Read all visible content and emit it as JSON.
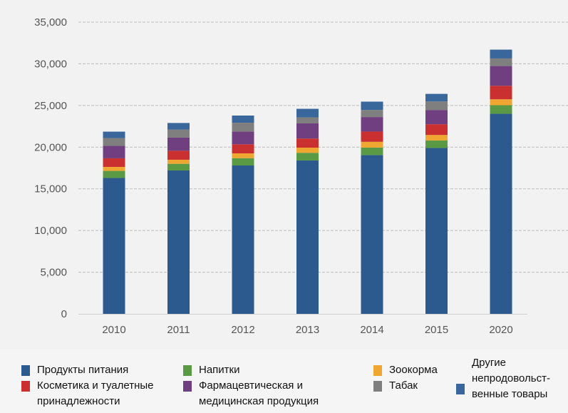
{
  "chart_data": {
    "type": "bar",
    "stacked": true,
    "title": "",
    "xlabel": "",
    "ylabel": "",
    "ylim": [
      0,
      35000
    ],
    "yticks": [
      0,
      5000,
      10000,
      15000,
      20000,
      25000,
      30000,
      35000
    ],
    "ytick_labels": [
      "0",
      "5,000",
      "10,000",
      "15,000",
      "20,000",
      "25,000",
      "30,000",
      "35,000"
    ],
    "grid": true,
    "legend_position": "bottom",
    "categories": [
      "2010",
      "2011",
      "2012",
      "2013",
      "2014",
      "2015",
      "2020"
    ],
    "series": [
      {
        "name": "Продукты питания",
        "color": "#2d5a8e",
        "values": [
          16300,
          17200,
          17800,
          18400,
          19050,
          19900,
          24000
        ]
      },
      {
        "name": "Напитки",
        "color": "#5b9a45",
        "values": [
          850,
          800,
          880,
          920,
          900,
          900,
          1030
        ]
      },
      {
        "name": "Зоокорма",
        "color": "#f0a732",
        "values": [
          480,
          490,
          570,
          620,
          690,
          660,
          710
        ]
      },
      {
        "name": "Косметика и туалетные принадлежности",
        "color": "#c9302f",
        "values": [
          1030,
          1080,
          1090,
          1090,
          1230,
          1290,
          1620
        ]
      },
      {
        "name": "Фармацевтическая и медицинская продукция",
        "color": "#6f3f7f",
        "values": [
          1490,
          1570,
          1540,
          1820,
          1740,
          1710,
          2370
        ]
      },
      {
        "name": "Табак",
        "color": "#7f7f7f",
        "values": [
          940,
          970,
          1050,
          720,
          850,
          1020,
          910
        ]
      },
      {
        "name": "Другие непродовольственные товары",
        "color": "#3a679b",
        "values": [
          770,
          790,
          860,
          1030,
          1000,
          910,
          1060
        ]
      }
    ]
  },
  "legend": [
    {
      "line1": "Продукты питания",
      "line2": ""
    },
    {
      "line1": "Напитки",
      "line2": ""
    },
    {
      "line1": "Зоокорма",
      "line2": ""
    },
    {
      "line1": "Косметика и туалетные",
      "line2": "принадлежности"
    },
    {
      "line1": "Фармацевтическая и",
      "line2": "медицинская продукция"
    },
    {
      "line1": "Табак",
      "line2": ""
    },
    {
      "line1": "Другие",
      "line2": "непродовольст-",
      "line3": "венные товары"
    }
  ]
}
